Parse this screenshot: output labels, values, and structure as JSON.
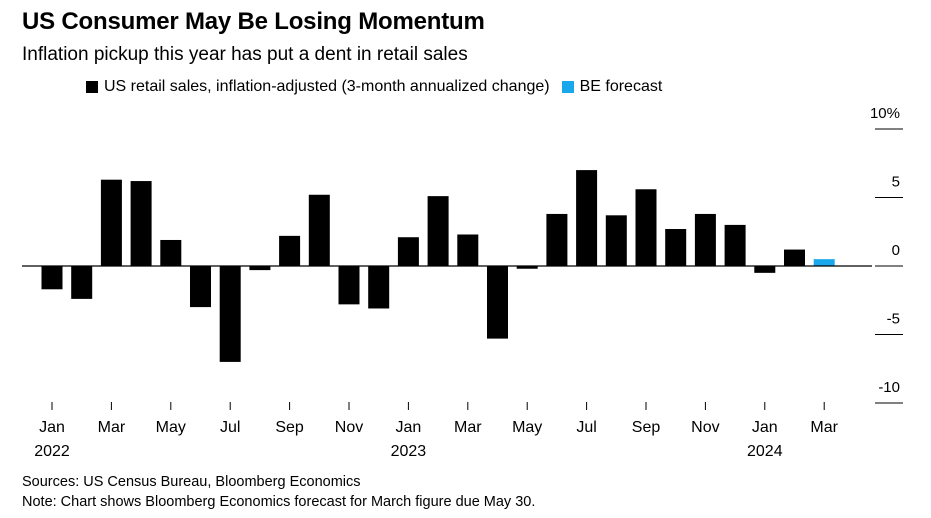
{
  "title": "US Consumer May Be Losing Momentum",
  "subtitle": "Inflation pickup this year has put a dent in retail sales",
  "legend": [
    {
      "label": "US retail sales, inflation-adjusted (3-month annualized change)",
      "color": "#000000"
    },
    {
      "label": "BE forecast",
      "color": "#1aa7ec"
    }
  ],
  "footer": {
    "sources": "Sources: US Census Bureau, Bloomberg Economics",
    "note": "Note: Chart shows Bloomberg Economics forecast for March figure due May 30."
  },
  "colors": {
    "actual": "#000000",
    "forecast": "#1aa7ec",
    "axis": "#000000"
  },
  "chart_data": {
    "type": "bar",
    "categories": [
      "Jan 2022",
      "Feb 2022",
      "Mar 2022",
      "Apr 2022",
      "May 2022",
      "Jun 2022",
      "Jul 2022",
      "Aug 2022",
      "Sep 2022",
      "Oct 2022",
      "Nov 2022",
      "Dec 2022",
      "Jan 2023",
      "Feb 2023",
      "Mar 2023",
      "Apr 2023",
      "May 2023",
      "Jun 2023",
      "Jul 2023",
      "Aug 2023",
      "Sep 2023",
      "Oct 2023",
      "Nov 2023",
      "Dec 2023",
      "Jan 2024",
      "Feb 2024",
      "Mar 2024"
    ],
    "series": [
      {
        "name": "US retail sales, inflation-adjusted (3-month annualized change)",
        "values": [
          -1.7,
          -2.4,
          6.3,
          6.2,
          1.9,
          -3.0,
          -7.0,
          -0.3,
          2.2,
          5.2,
          -2.8,
          -3.1,
          2.1,
          5.1,
          2.3,
          -5.3,
          -0.2,
          3.8,
          7.0,
          3.7,
          5.6,
          2.7,
          3.8,
          3.0,
          -0.5,
          1.2,
          null
        ]
      },
      {
        "name": "BE forecast",
        "values": [
          null,
          null,
          null,
          null,
          null,
          null,
          null,
          null,
          null,
          null,
          null,
          null,
          null,
          null,
          null,
          null,
          null,
          null,
          null,
          null,
          null,
          null,
          null,
          null,
          null,
          null,
          0.5
        ]
      }
    ],
    "ylim": [
      -10,
      10
    ],
    "yticks": [
      {
        "value": 10,
        "label": "10%"
      },
      {
        "value": 5,
        "label": "5"
      },
      {
        "value": 0,
        "label": "0"
      },
      {
        "value": -5,
        "label": "-5"
      },
      {
        "value": -10,
        "label": "-10"
      }
    ],
    "xticks": [
      {
        "index": 0,
        "label": "Jan",
        "year": "2022"
      },
      {
        "index": 2,
        "label": "Mar"
      },
      {
        "index": 4,
        "label": "May"
      },
      {
        "index": 6,
        "label": "Jul"
      },
      {
        "index": 8,
        "label": "Sep"
      },
      {
        "index": 10,
        "label": "Nov"
      },
      {
        "index": 12,
        "label": "Jan",
        "year": "2023"
      },
      {
        "index": 14,
        "label": "Mar"
      },
      {
        "index": 16,
        "label": "May"
      },
      {
        "index": 18,
        "label": "Jul"
      },
      {
        "index": 20,
        "label": "Sep"
      },
      {
        "index": 22,
        "label": "Nov"
      },
      {
        "index": 24,
        "label": "Jan",
        "year": "2024"
      },
      {
        "index": 26,
        "label": "Mar"
      }
    ],
    "grid": false,
    "legend_position": "top-left"
  }
}
